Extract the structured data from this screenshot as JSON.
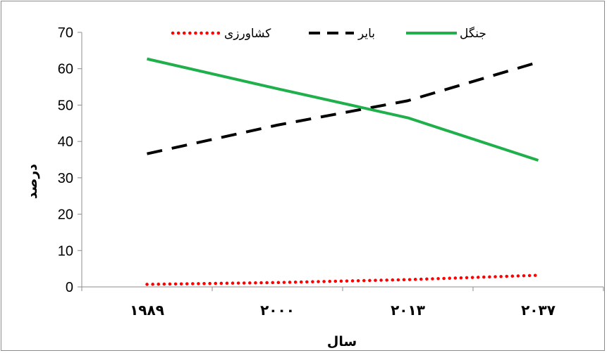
{
  "chart_data": {
    "type": "line",
    "title": "",
    "xlabel": "سال",
    "ylabel": "درصد",
    "categories": [
      "۱۹۸۹",
      "۲۰۰۰",
      "۲۰۱۳",
      "۲۰۳۷"
    ],
    "ylim": [
      0,
      70
    ],
    "yticks": [
      0,
      10,
      20,
      30,
      40,
      50,
      60,
      70
    ],
    "grid": false,
    "legend_position": "top",
    "series": [
      {
        "name": "کشاورزی",
        "values": [
          0.7,
          1.2,
          2.0,
          3.2
        ],
        "color": "#ff0000",
        "style": "dotted"
      },
      {
        "name": "بایر",
        "values": [
          36.6,
          44.5,
          51.2,
          61.8
        ],
        "color": "#000000",
        "style": "dashed"
      },
      {
        "name": "جنگل",
        "values": [
          62.7,
          54.5,
          46.5,
          34.8
        ],
        "color": "#1fb04b",
        "style": "solid"
      }
    ]
  }
}
